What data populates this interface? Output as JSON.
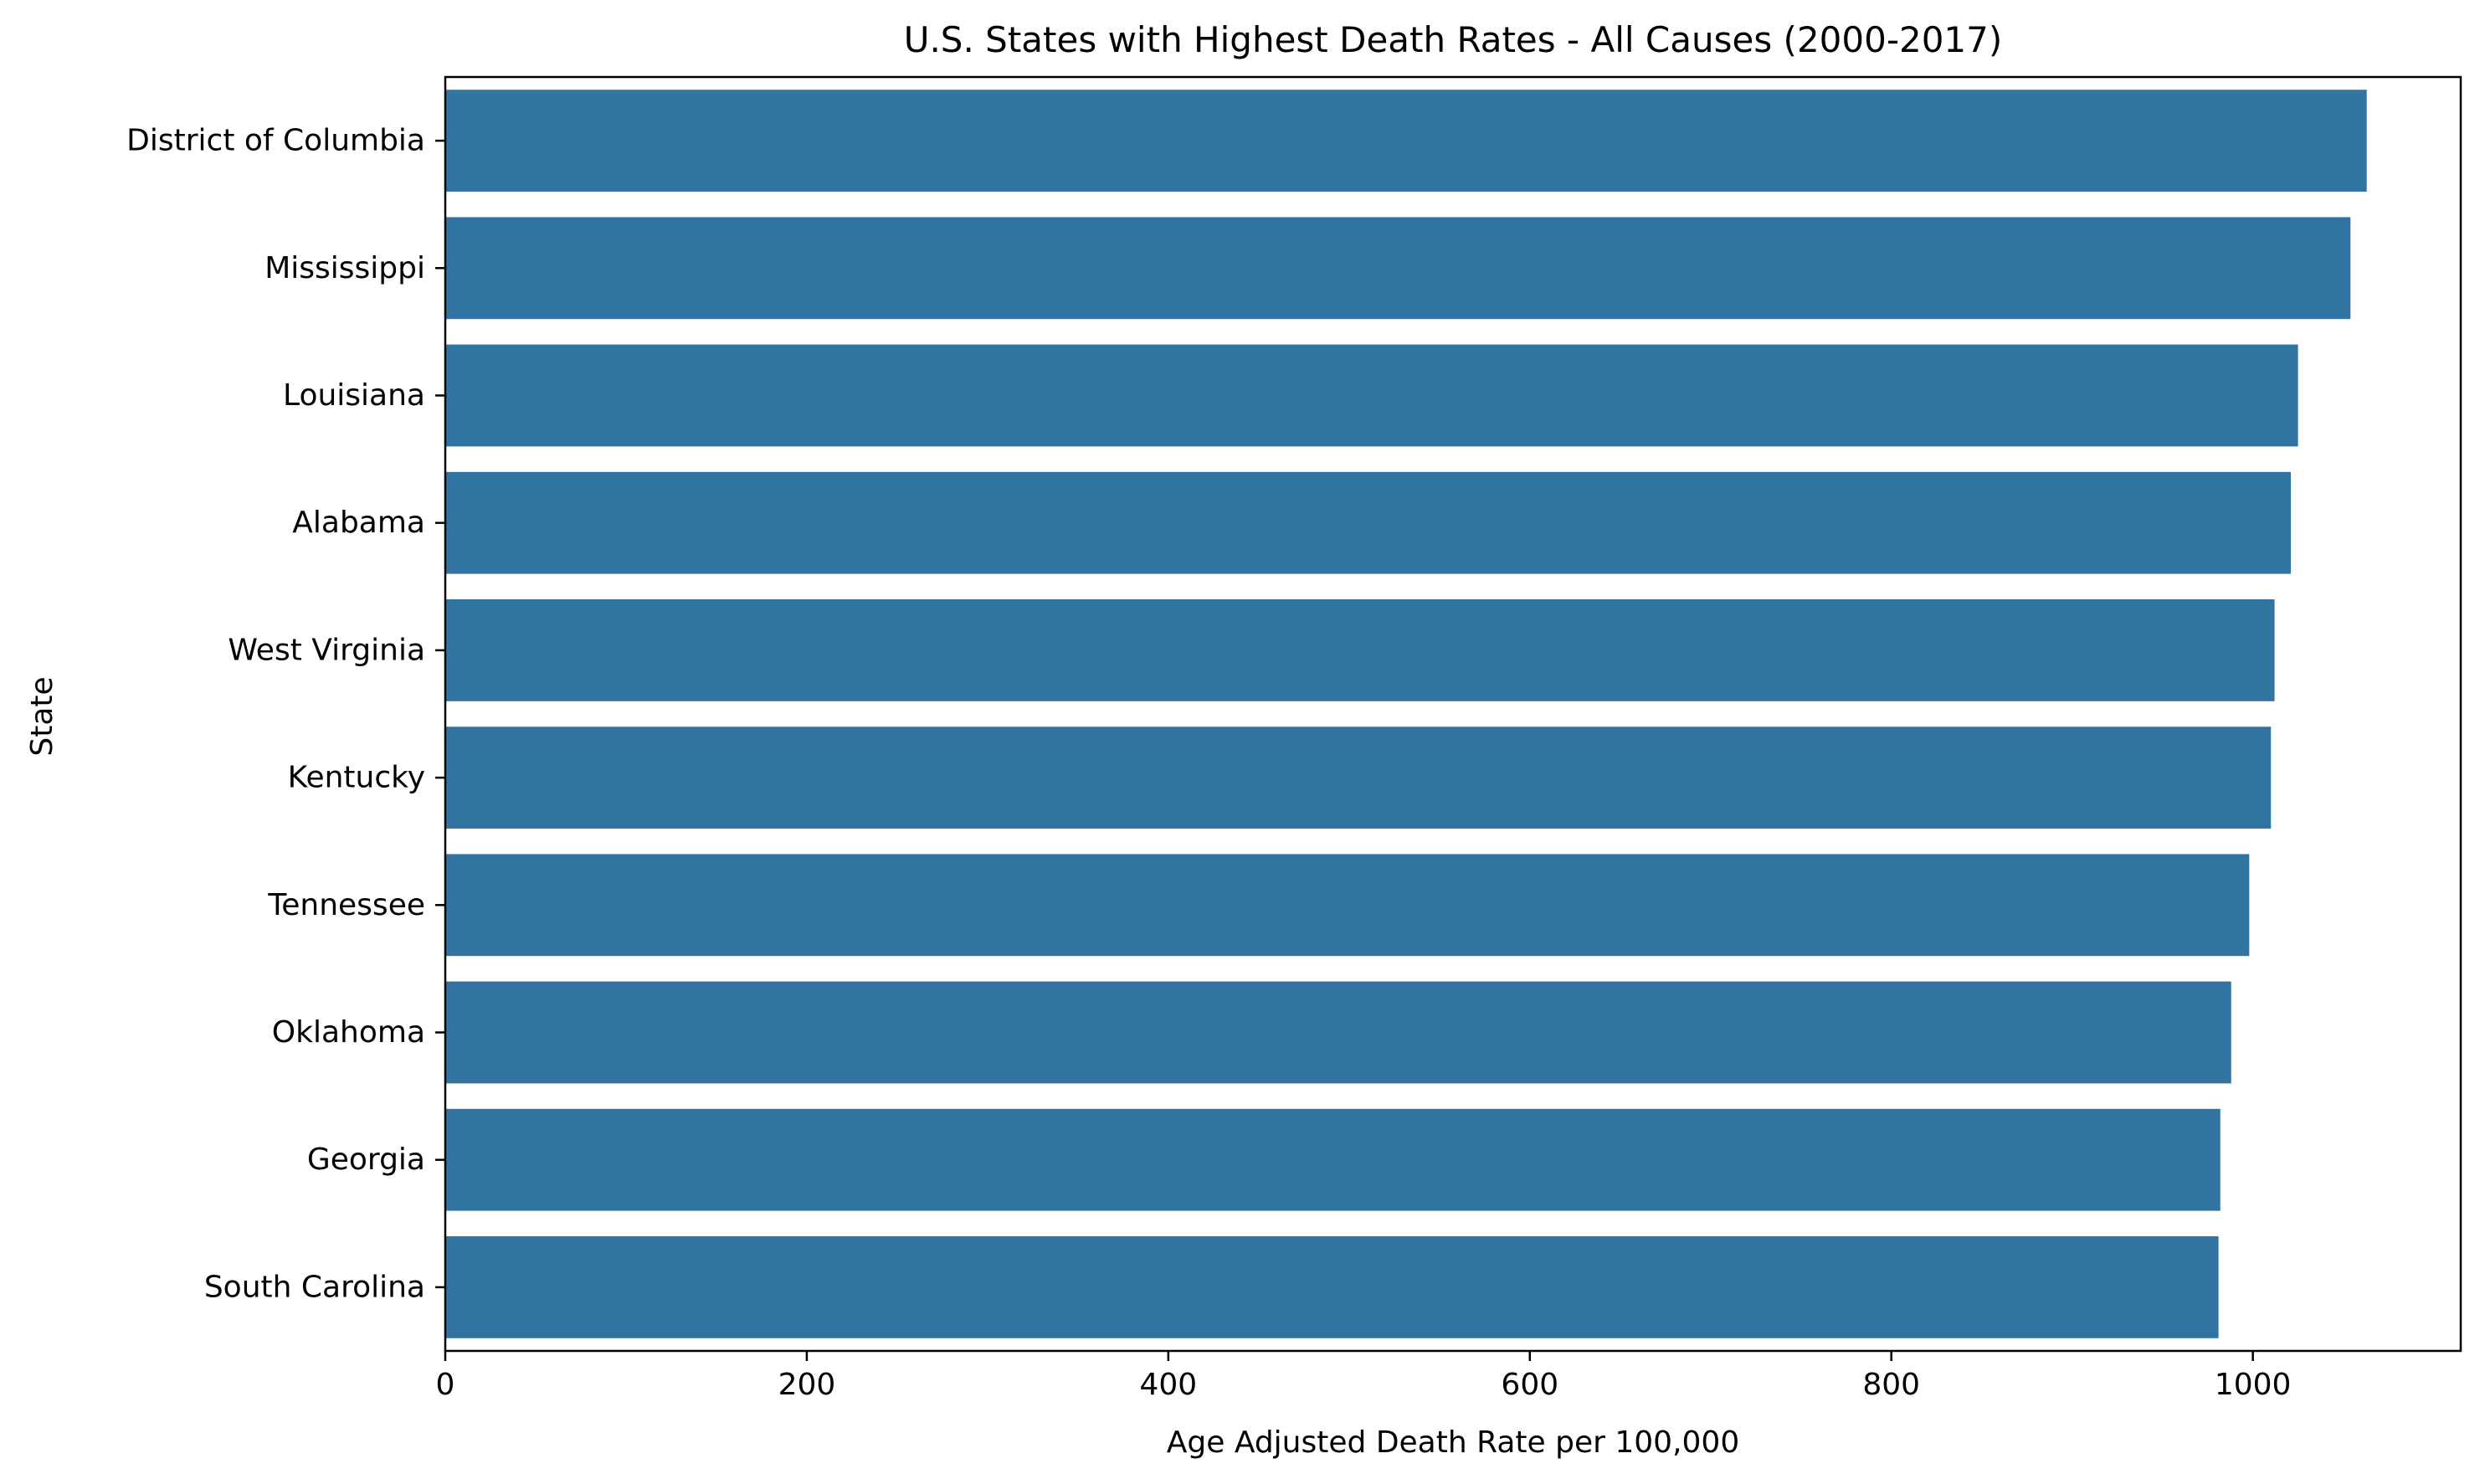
{
  "chart_data": {
    "type": "bar",
    "orientation": "horizontal",
    "title": "U.S. States with Highest Death Rates - All Causes (2000-2017)",
    "xlabel": "Age Adjusted Death Rate per 100,000",
    "ylabel": "State",
    "categories": [
      "District of Columbia",
      "Mississippi",
      "Louisiana",
      "Alabama",
      "West Virginia",
      "Kentucky",
      "Tennessee",
      "Oklahoma",
      "Georgia",
      "South Carolina"
    ],
    "values": [
      1063,
      1054,
      1025,
      1021,
      1012,
      1010,
      998,
      988,
      982,
      981
    ],
    "xlim": [
      0,
      1115
    ],
    "xticks": [
      0,
      200,
      400,
      600,
      800,
      1000
    ],
    "grid": false,
    "legend": "none",
    "colors": {
      "bar": "#3274a1",
      "axis": "#000000",
      "background": "#ffffff"
    }
  }
}
